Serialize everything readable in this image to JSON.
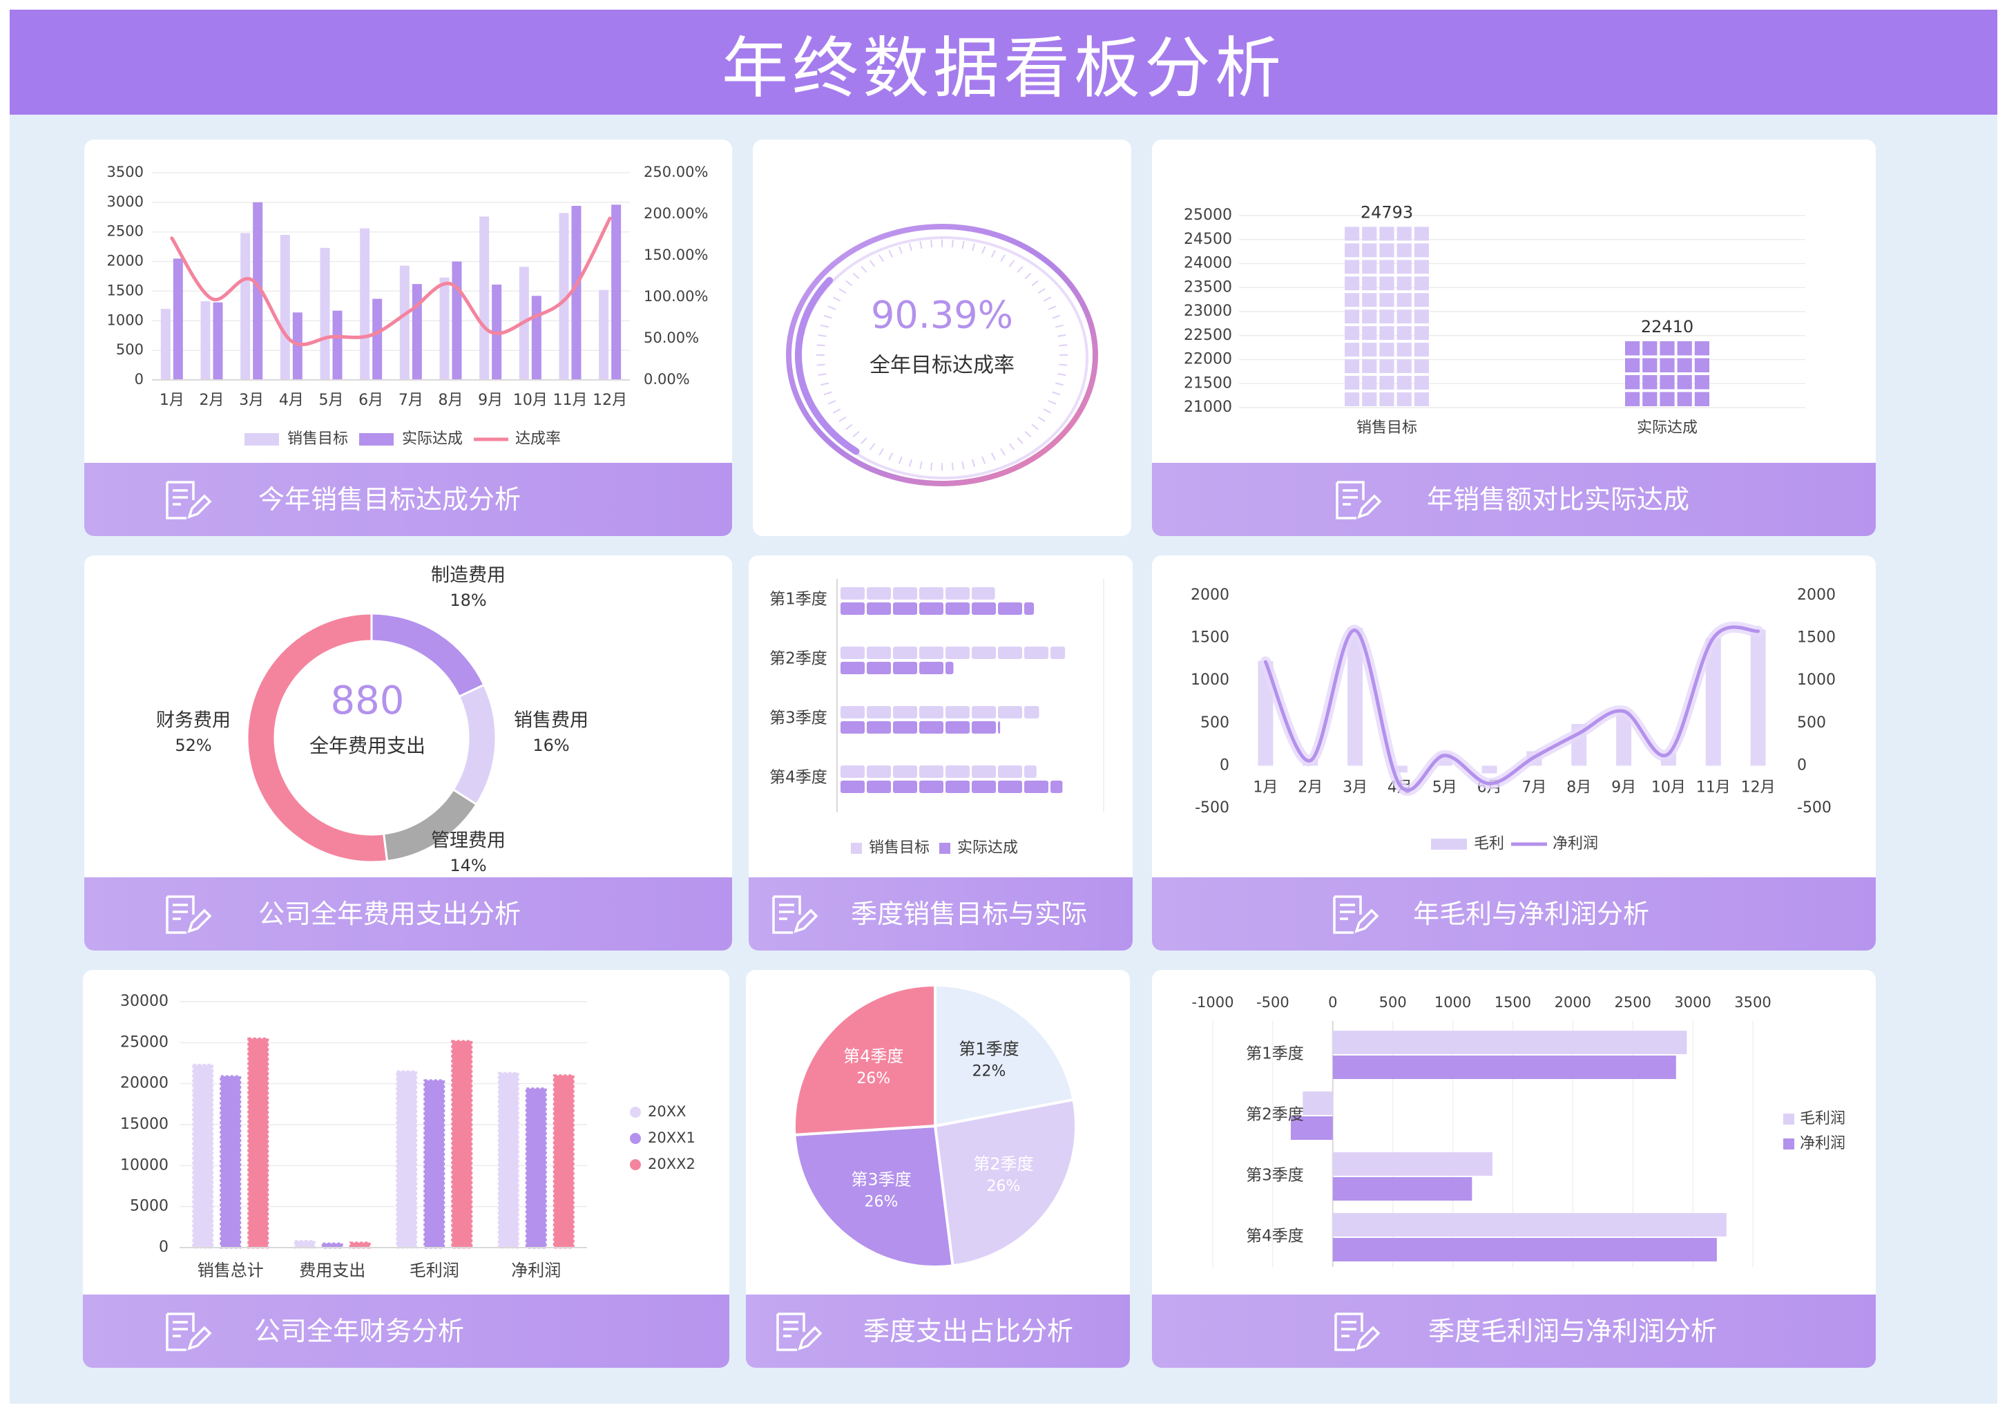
{
  "page": {
    "title": "年终数据看板分析"
  },
  "footers": {
    "c1": "今年销售目标达成分析",
    "c3": "年销售额对比实际达成",
    "c4": "公司全年费用支出分析",
    "c5": "季度销售目标与实际",
    "c6": "年毛利与净利润分析",
    "c7": "公司全年财务分析",
    "c8": "季度支出占比分析",
    "c9": "季度毛利润与净利润分析"
  },
  "colors": {
    "light": "#ddd0f7",
    "medium": "#b391ec",
    "pink": "#f4849e",
    "gray": "#a9a9a9",
    "pie_blue": "#e5eefa"
  },
  "chart_data": [
    {
      "id": "monthly",
      "type": "bar",
      "categories": [
        "1月",
        "2月",
        "3月",
        "4月",
        "5月",
        "6月",
        "7月",
        "8月",
        "9月",
        "10月",
        "11月",
        "12月"
      ],
      "series": [
        {
          "name": "销售目标",
          "values": [
            1200,
            1330,
            2480,
            2450,
            2230,
            2560,
            1930,
            1730,
            2760,
            1910,
            2820,
            1520
          ]
        },
        {
          "name": "实际达成",
          "values": [
            2050,
            1310,
            3000,
            1140,
            1170,
            1370,
            1620,
            2000,
            1610,
            1420,
            2940,
            2960
          ]
        },
        {
          "name": "达成率",
          "values": [
            171,
            98,
            121,
            47,
            52,
            54,
            84,
            116,
            58,
            74,
            104,
            195
          ],
          "unit": "%",
          "axis": "right"
        }
      ],
      "y_left": {
        "min": 0,
        "max": 3500,
        "ticks": [
          "0",
          "500",
          "1000",
          "1500",
          "2000",
          "2500",
          "3000",
          "3500"
        ]
      },
      "y_right": {
        "min": 0,
        "max": 250,
        "ticks": [
          "0.00%",
          "50.00%",
          "100.00%",
          "150.00%",
          "200.00%",
          "250.00%"
        ]
      },
      "legend": [
        "销售目标",
        "实际达成",
        "达成率"
      ],
      "legend_position": "bottom"
    },
    {
      "id": "gauge",
      "type": "gauge",
      "value": 90.39,
      "value_label": "90.39%",
      "label": "全年目标达成率"
    },
    {
      "id": "annual",
      "type": "bar",
      "categories": [
        "销售目标",
        "实际达成"
      ],
      "values": [
        24793,
        22410
      ],
      "data_labels": [
        "24793",
        "22410"
      ],
      "y": {
        "min": 21000,
        "max": 25000,
        "ticks": [
          "21000",
          "21500",
          "22000",
          "22500",
          "23000",
          "23500",
          "24000",
          "24500",
          "25000"
        ]
      }
    },
    {
      "id": "expense",
      "type": "pie",
      "center_value": "880",
      "center_label": "全年费用支出",
      "slices": [
        {
          "name": "制造费用",
          "percent": 18,
          "label": "18%",
          "color": "#b391ec"
        },
        {
          "name": "销售费用",
          "percent": 16,
          "label": "16%",
          "color": "#ddd0f7"
        },
        {
          "name": "管理费用",
          "percent": 14,
          "label": "14%",
          "color": "#a9a9a9"
        },
        {
          "name": "财务费用",
          "percent": 52,
          "label": "52%",
          "color": "#f4849e"
        }
      ]
    },
    {
      "id": "quarter_hbar",
      "type": "bar",
      "orientation": "horizontal",
      "categories": [
        "第1季度",
        "第2季度",
        "第3季度",
        "第4季度"
      ],
      "series": [
        {
          "name": "销售目标",
          "values": [
            60,
            87,
            77,
            76
          ]
        },
        {
          "name": "实际达成",
          "values": [
            75,
            44,
            62,
            86
          ]
        }
      ],
      "legend": [
        "销售目标",
        "实际达成"
      ],
      "legend_position": "bottom"
    },
    {
      "id": "profit",
      "type": "line",
      "categories": [
        "1月",
        "2月",
        "3月",
        "4月",
        "5月",
        "6月",
        "7月",
        "8月",
        "9月",
        "10月",
        "11月",
        "12月"
      ],
      "series": [
        {
          "name": "毛利",
          "values": [
            1230,
            80,
            1620,
            -80,
            150,
            -90,
            170,
            490,
            650,
            150,
            1500,
            1600
          ]
        },
        {
          "name": "净利润",
          "values": [
            1220,
            60,
            1590,
            -230,
            120,
            -210,
            100,
            380,
            640,
            140,
            1500,
            1580
          ]
        }
      ],
      "y_left": {
        "min": -500,
        "max": 2000,
        "ticks": [
          "-500",
          "0",
          "500",
          "1000",
          "1500",
          "2000"
        ]
      },
      "y_right": {
        "min": -500,
        "max": 2000,
        "ticks": [
          "-500",
          "0",
          "500",
          "1000",
          "1500",
          "2000"
        ]
      },
      "legend": [
        "毛利",
        "净利润"
      ],
      "legend_position": "bottom"
    },
    {
      "id": "finance",
      "type": "bar",
      "categories": [
        "销售总计",
        "费用支出",
        "毛利润",
        "净利润"
      ],
      "series": [
        {
          "name": "20XX",
          "values": [
            22300,
            800,
            21500,
            21300
          ]
        },
        {
          "name": "20XX1",
          "values": [
            20900,
            500,
            20400,
            19400
          ]
        },
        {
          "name": "20XX2",
          "values": [
            25500,
            600,
            25200,
            21000
          ]
        }
      ],
      "y": {
        "min": 0,
        "max": 30000,
        "ticks": [
          "0",
          "5000",
          "10000",
          "15000",
          "20000",
          "25000",
          "30000"
        ]
      },
      "legend": [
        "20XX",
        "20XX1",
        "20XX2"
      ],
      "legend_position": "right"
    },
    {
      "id": "quarter_pie",
      "type": "pie",
      "slices": [
        {
          "name": "第1季度",
          "label": "22%",
          "percent": 22
        },
        {
          "name": "第2季度",
          "label": "26%",
          "percent": 26
        },
        {
          "name": "第3季度",
          "label": "26%",
          "percent": 26
        },
        {
          "name": "第4季度",
          "label": "26%",
          "percent": 26
        }
      ]
    },
    {
      "id": "quarter_profit",
      "type": "bar",
      "orientation": "horizontal",
      "categories": [
        "第1季度",
        "第2季度",
        "第3季度",
        "第4季度"
      ],
      "series": [
        {
          "name": "毛利润",
          "values": [
            2950,
            -250,
            1330,
            3280
          ]
        },
        {
          "name": "净利润",
          "values": [
            2860,
            -350,
            1160,
            3200
          ]
        }
      ],
      "x": {
        "min": -1000,
        "max": 3500,
        "ticks": [
          "-1000",
          "-500",
          "0",
          "500",
          "1000",
          "1500",
          "2000",
          "2500",
          "3000",
          "3500"
        ]
      },
      "legend": [
        "毛利润",
        "净利润"
      ],
      "legend_position": "right"
    }
  ]
}
